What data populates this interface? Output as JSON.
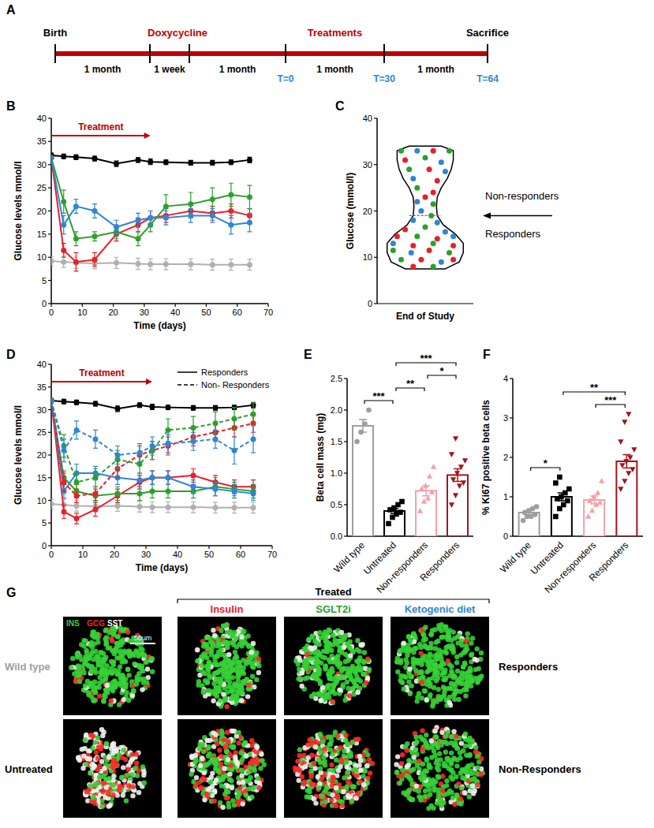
{
  "panel_labels": [
    "A",
    "B",
    "C",
    "D",
    "E",
    "F",
    "G"
  ],
  "timeline": {
    "bar_color": "#c00000",
    "above": [
      {
        "text": "Birth",
        "color": "#000000"
      },
      {
        "text": "Doxycycline",
        "color": "#c00000"
      },
      {
        "text": "Treatments",
        "color": "#c00000"
      },
      {
        "text": "Sacrifice",
        "color": "#000000"
      }
    ],
    "durations": [
      "1 month",
      "1 week",
      "1 month",
      "1 month",
      "1 month"
    ],
    "timepoints": [
      {
        "text": "T=0",
        "color": "#2e86d4"
      },
      {
        "text": "T=30",
        "color": "#2e86d4"
      },
      {
        "text": "T=64",
        "color": "#2e86d4"
      }
    ]
  },
  "chart_data": [
    {
      "type": "line",
      "ylabel": "Glucose levels mmol/l",
      "xlabel": "Time (days)",
      "x": [
        0,
        4,
        8,
        14,
        21,
        28,
        32,
        37,
        45,
        52,
        58,
        64
      ],
      "xlim": [
        0,
        70
      ],
      "xticks": [
        0,
        10,
        20,
        30,
        40,
        50,
        60,
        70
      ],
      "ylim": [
        0,
        40
      ],
      "yticks": [
        0,
        5,
        10,
        15,
        20,
        25,
        30,
        35,
        40
      ],
      "grid": false,
      "annotations": [
        {
          "text": "Treatment",
          "x": 0,
          "x_end": 32,
          "color": "#c00000"
        }
      ],
      "series": [
        {
          "color": "#000000",
          "marker": "circle",
          "line_style": "solid",
          "values": [
            32,
            31.8,
            31.6,
            31.3,
            30.2,
            31,
            30.6,
            30.5,
            30.4,
            30.4,
            30.5,
            31
          ],
          "errors": [
            0.5,
            0.5,
            0.5,
            0.5,
            0.6,
            0.5,
            0.6,
            0.5,
            0.5,
            0.5,
            0.5,
            0.6
          ]
        },
        {
          "color": "#b0b0b0",
          "marker": "circle",
          "line_style": "solid",
          "values": [
            9.2,
            9,
            8.8,
            8.7,
            8.8,
            8.6,
            8.5,
            8.5,
            8.5,
            8.4,
            8.4,
            8.4
          ],
          "errors": [
            1,
            1.2,
            1.2,
            1.2,
            1.2,
            1.2,
            1.2,
            1.2,
            1.2,
            1.2,
            1.2,
            1.2
          ]
        },
        {
          "color": "#e8202a",
          "marker": "circle",
          "line_style": "solid",
          "values": [
            31.5,
            11.5,
            9,
            9.5,
            15,
            17,
            18.5,
            19,
            20,
            19.5,
            20,
            19
          ],
          "errors": [
            0,
            1.5,
            2,
            1.5,
            1.5,
            1.5,
            1.5,
            1.5,
            1.5,
            1.5,
            1.5,
            1.5
          ]
        },
        {
          "color": "#2ca02c",
          "marker": "circle",
          "line_style": "solid",
          "values": [
            31.5,
            22,
            14,
            14.5,
            15.5,
            14,
            17,
            21,
            21.5,
            22.5,
            23.5,
            23
          ],
          "errors": [
            0,
            2.5,
            1.5,
            1,
            1.5,
            1.5,
            1.5,
            2.5,
            2.5,
            2.5,
            2.5,
            2.5
          ]
        },
        {
          "color": "#2e86d4",
          "marker": "circle",
          "line_style": "solid",
          "values": [
            31.5,
            17,
            21,
            20,
            16.5,
            18,
            18.5,
            18.5,
            19,
            19,
            17,
            17.5
          ],
          "errors": [
            0,
            2,
            1.5,
            1.5,
            1.5,
            1.5,
            1.5,
            1.5,
            1.5,
            1.5,
            2,
            2
          ]
        }
      ]
    },
    {
      "type": "violin",
      "ylabel": "Glucose (mmol/l)",
      "xlabel": "End of Study",
      "xlim": [
        -1.2,
        1.2
      ],
      "ylim": [
        0,
        40
      ],
      "yticks": [
        0,
        10,
        20,
        30,
        40
      ],
      "tick_labels": "y",
      "grid": false,
      "violin": {
        "y": [
          7.5,
          9,
          11,
          13,
          15,
          17,
          19,
          21,
          23,
          25,
          27,
          29,
          31,
          33,
          34
        ],
        "width": [
          0.5,
          0.85,
          0.95,
          0.95,
          0.75,
          0.45,
          0.3,
          0.28,
          0.3,
          0.4,
          0.55,
          0.65,
          0.7,
          0.7,
          0.4
        ]
      },
      "threshold": 19,
      "annotations": [
        {
          "text": "Non-responders"
        },
        {
          "text": "Responders"
        }
      ],
      "x": [
        -0.6,
        -0.2,
        0.2,
        0.6,
        -0.5,
        0,
        0.4,
        -0.4,
        0.1,
        0.5,
        -0.3,
        0.3,
        -0.2,
        0.2,
        0,
        -0.2,
        0.2,
        -0.1,
        0.15,
        -0.3,
        0.3,
        -0.5,
        0,
        0.5,
        -0.7,
        -0.2,
        0.3,
        0.7,
        -0.8,
        -0.3,
        0.2,
        0.7,
        -0.8,
        -0.35,
        0.1,
        0.6,
        -0.6,
        -0.1,
        0.4,
        0.7,
        -0.3,
        0.2
      ],
      "y": [
        33,
        33,
        33,
        33,
        31,
        31.5,
        30.5,
        29,
        29,
        28.5,
        27,
        26.5,
        25,
        24,
        23,
        22,
        21.5,
        20,
        19,
        18,
        17.5,
        16,
        16.5,
        15.5,
        14.5,
        14.5,
        14,
        14.5,
        13,
        12.5,
        13,
        12.5,
        11.5,
        11,
        11.5,
        11,
        9.5,
        9.5,
        9,
        9.5,
        8,
        8
      ],
      "colors": [
        "#2ca02c",
        "#2e86d4",
        "#e8202a",
        "#2ca02c",
        "#e8202a",
        "#2ca02c",
        "#2e86d4",
        "#2ca02c",
        "#e8202a",
        "#2e86d4",
        "#2e86d4",
        "#e8202a",
        "#2ca02c",
        "#e8202a",
        "#e8202a",
        "#2e86d4",
        "#2ca02c",
        "#2e86d4",
        "#2ca02c",
        "#2e86d4",
        "#2e86d4",
        "#e8202a",
        "#2ca02c",
        "#2e86d4",
        "#e8202a",
        "#2ca02c",
        "#e8202a",
        "#2e86d4",
        "#2e86d4",
        "#e8202a",
        "#2ca02c",
        "#e8202a",
        "#2ca02c",
        "#2e86d4",
        "#e8202a",
        "#2ca02c",
        "#2ca02c",
        "#e8202a",
        "#2e86d4",
        "#e8202a",
        "#e8202a",
        "#2ca02c"
      ]
    },
    {
      "type": "line",
      "ylabel": "Glucose levels mmol/l",
      "xlabel": "Time (days)",
      "x": [
        0,
        4,
        8,
        14,
        21,
        28,
        32,
        37,
        45,
        52,
        58,
        64
      ],
      "xlim": [
        0,
        70
      ],
      "xticks": [
        0,
        10,
        20,
        30,
        40,
        50,
        60,
        70
      ],
      "ylim": [
        0,
        40
      ],
      "yticks": [
        0,
        5,
        10,
        15,
        20,
        25,
        30,
        35,
        40
      ],
      "grid": false,
      "legend": "top-right",
      "legend_items": [
        {
          "label": "Responders",
          "line_style": "solid"
        },
        {
          "label": "Non- Responders",
          "line_style": "dashed"
        }
      ],
      "annotations": [
        {
          "text": "Treatment",
          "x": 0,
          "x_end": 32,
          "color": "#c00000"
        }
      ],
      "series": [
        {
          "color": "#000000",
          "marker": "circle",
          "line_style": "solid",
          "values": [
            32,
            31.8,
            31.6,
            31.3,
            30.2,
            31,
            30.6,
            30.5,
            30.4,
            30.4,
            30.5,
            31
          ],
          "errors": [
            0.5,
            0.5,
            0.5,
            0.5,
            0.6,
            0.5,
            0.6,
            0.5,
            0.5,
            0.5,
            0.5,
            0.6
          ]
        },
        {
          "color": "#b0b0b0",
          "marker": "circle",
          "line_style": "solid",
          "values": [
            9.2,
            9,
            8.8,
            8.7,
            8.8,
            8.6,
            8.5,
            8.5,
            8.5,
            8.4,
            8.4,
            8.4
          ],
          "errors": [
            1,
            1.2,
            1.2,
            1.2,
            1.2,
            1.2,
            1.2,
            1.2,
            1.2,
            1.2,
            1.2,
            1.2
          ]
        },
        {
          "color": "#e8202a",
          "marker": "circle",
          "line_style": "solid",
          "values": [
            32,
            7.5,
            6,
            8,
            11,
            14,
            15,
            15,
            15.5,
            14,
            13,
            13
          ],
          "errors": [
            0,
            1.5,
            1.2,
            1.5,
            1.5,
            1.5,
            1.5,
            1.5,
            1.5,
            1.5,
            1.5,
            1.5
          ]
        },
        {
          "color": "#2ca02c",
          "marker": "circle",
          "line_style": "solid",
          "values": [
            32,
            15,
            12,
            11,
            11.5,
            11.5,
            12,
            12,
            12,
            13,
            12.5,
            12
          ],
          "errors": [
            0,
            1.5,
            1.5,
            1.5,
            1.5,
            1.5,
            1.5,
            1.5,
            1.5,
            2,
            1.5,
            1.5
          ]
        },
        {
          "color": "#2e86d4",
          "marker": "circle",
          "line_style": "solid",
          "values": [
            32,
            12,
            16,
            16,
            15,
            14.5,
            15,
            15,
            13,
            12.5,
            12,
            11.5
          ],
          "errors": [
            0,
            1.5,
            2,
            1.5,
            1.5,
            1.5,
            1.5,
            1.5,
            1.5,
            1.5,
            1.5,
            1.5
          ]
        },
        {
          "color": "#e8202a",
          "marker": "circle",
          "line_style": "dashed",
          "values": [
            32,
            14,
            11,
            11.5,
            17,
            20,
            21,
            22,
            24,
            25,
            26,
            27
          ],
          "errors": [
            0,
            2,
            1.5,
            1.5,
            2,
            2,
            2,
            2,
            2,
            2,
            2,
            2
          ]
        },
        {
          "color": "#2ca02c",
          "marker": "circle",
          "line_style": "dashed",
          "values": [
            32,
            22,
            14,
            15,
            19,
            18,
            21,
            25.5,
            26,
            27,
            28,
            29
          ],
          "errors": [
            0,
            2.5,
            2,
            2,
            2,
            2,
            2,
            2.5,
            2.5,
            2.5,
            2.5,
            2.5
          ]
        },
        {
          "color": "#2e86d4",
          "marker": "circle",
          "line_style": "dashed",
          "values": [
            32,
            21,
            25.5,
            23.5,
            20,
            20.5,
            22,
            22.5,
            23,
            23.5,
            21,
            23.5
          ],
          "errors": [
            0,
            2.5,
            2,
            2,
            2,
            2,
            2,
            2,
            2,
            2,
            3,
            3
          ]
        }
      ]
    },
    {
      "type": "bar",
      "ylabel": "Beta cell mass (mg)",
      "categories": [
        "Wild type",
        "Untreated",
        "Non-responders",
        "Responders"
      ],
      "values": [
        1.75,
        0.4,
        0.72,
        0.97
      ],
      "errors": [
        0.1,
        0.04,
        0.08,
        0.1
      ],
      "colors": [
        "#9e9e9e",
        "#000000",
        "#f4a0a8",
        "#a3141c"
      ],
      "points": [
        {
          "marker": "circle",
          "values": [
            1.5,
            1.65,
            1.78,
            2.0
          ]
        },
        {
          "marker": "square",
          "values": [
            0.2,
            0.3,
            0.35,
            0.38,
            0.42,
            0.45,
            0.5,
            0.55
          ]
        },
        {
          "marker": "triangle",
          "values": [
            0.4,
            0.55,
            0.6,
            0.7,
            0.75,
            0.8,
            0.95,
            1.1
          ]
        },
        {
          "marker": "triangle-down",
          "values": [
            0.5,
            0.65,
            0.8,
            0.85,
            0.9,
            1.0,
            1.1,
            1.2,
            1.3,
            1.55
          ]
        }
      ],
      "ylim": [
        0,
        2.5
      ],
      "yticks": [
        {
          "value": 0,
          "label": "0.0"
        },
        0.5,
        {
          "value": 1,
          "label": "1.0"
        },
        1.5,
        {
          "value": 2,
          "label": "2.0"
        },
        2.5
      ],
      "grid": false,
      "significance": [
        {
          "from": 0,
          "to": 1,
          "label": "***"
        },
        {
          "from": 1,
          "to": 2,
          "label": "**"
        },
        {
          "from": 1,
          "to": 3,
          "label": "***"
        },
        {
          "from": 2,
          "to": 3,
          "label": "*"
        }
      ]
    },
    {
      "type": "bar",
      "ylabel": "% Ki67 positive beta cells",
      "categories": [
        "Wild type",
        "Untreated",
        "Non-responders",
        "Responders"
      ],
      "values": [
        0.6,
        1.0,
        0.92,
        1.9
      ],
      "errors": [
        0.05,
        0.1,
        0.1,
        0.17
      ],
      "colors": [
        "#9e9e9e",
        "#000000",
        "#f4a0a8",
        "#a3141c"
      ],
      "points": [
        {
          "marker": "circle",
          "values": [
            0.4,
            0.5,
            0.5,
            0.55,
            0.6,
            0.65,
            0.7,
            0.75
          ]
        },
        {
          "marker": "square",
          "values": [
            0.5,
            0.7,
            0.8,
            0.9,
            0.95,
            1.0,
            1.1,
            1.2,
            1.35,
            1.5
          ]
        },
        {
          "marker": "triangle",
          "values": [
            0.5,
            0.65,
            0.8,
            0.85,
            0.9,
            1.0,
            1.1,
            1.4
          ]
        },
        {
          "marker": "triangle-down",
          "values": [
            1.2,
            1.4,
            1.6,
            1.7,
            1.8,
            1.9,
            2.0,
            2.2,
            2.4,
            2.9,
            3.1
          ]
        }
      ],
      "ylim": [
        0,
        4
      ],
      "yticks": [
        0,
        1,
        2,
        3,
        4
      ],
      "grid": false,
      "significance": [
        {
          "from": 0,
          "to": 1,
          "label": "*"
        },
        {
          "from": 1,
          "to": 3,
          "label": "**"
        },
        {
          "from": 2,
          "to": 3,
          "label": "***"
        }
      ]
    }
  ],
  "image_panel": {
    "treated_label": "Treated",
    "columns": [
      {
        "text": "Insulin",
        "color": "#e8202a"
      },
      {
        "text": "SGLT2i",
        "color": "#2ca02c"
      },
      {
        "text": "Ketogenic diet",
        "color": "#2e86d4"
      }
    ],
    "rows": [
      "Responders",
      "Non-Responders"
    ],
    "controls": [
      {
        "text": "Wild type",
        "color": "#9e9e9e"
      },
      {
        "text": "Untreated",
        "color": "#000000"
      }
    ],
    "stains": [
      {
        "text": "INS",
        "color": "#3fcf3f"
      },
      {
        "text": "GCG",
        "color": "#ff2020"
      },
      {
        "text": "SST",
        "color": "#ffffff"
      }
    ],
    "scale_bar": "50µm"
  }
}
